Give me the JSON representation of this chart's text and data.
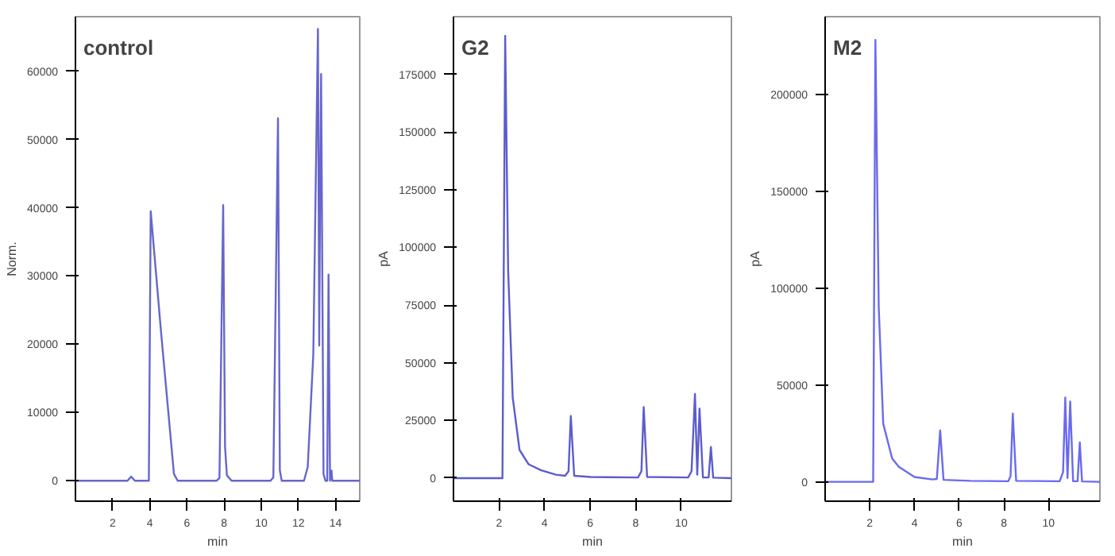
{
  "chart_data": [
    {
      "type": "line",
      "title": "control",
      "ylabel": "Norm.",
      "xlabel": "min",
      "grid": false,
      "marker": "none",
      "x": [
        0,
        2.8,
        3.0,
        3.2,
        3.95,
        4.05,
        4.6,
        5.0,
        5.3,
        5.5,
        7.6,
        7.75,
        7.95,
        8.05,
        8.15,
        8.4,
        10.5,
        10.65,
        10.9,
        11.0,
        11.1,
        12.3,
        12.5,
        12.8,
        13.05,
        13.12,
        13.16,
        13.22,
        13.35,
        13.45,
        13.55,
        13.62,
        13.7,
        13.78,
        13.82,
        13.9,
        15.3
      ],
      "series": [
        {
          "color": "#6666cc",
          "values": [
            0,
            0,
            600,
            0,
            0,
            39500,
            22000,
            10000,
            1000,
            0,
            0,
            400,
            40400,
            5000,
            800,
            0,
            0,
            500,
            53100,
            1500,
            0,
            0,
            2000,
            18500,
            66200,
            19800,
            40000,
            59600,
            1000,
            0,
            0,
            30200,
            0,
            1500,
            0,
            0,
            0
          ]
        }
      ],
      "xlim": [
        0,
        15.3
      ],
      "ylim": [
        -3000,
        68000
      ],
      "xticks": [
        2,
        4,
        6,
        8,
        10,
        12,
        14
      ],
      "yticks": [
        0,
        10000,
        20000,
        30000,
        40000,
        50000,
        60000
      ]
    },
    {
      "type": "line",
      "title": "G2",
      "ylabel": "pA",
      "xlabel": "min",
      "grid": false,
      "marker": "none",
      "x": [
        0,
        2.15,
        2.27,
        2.4,
        2.6,
        2.9,
        3.3,
        3.85,
        4.5,
        4.9,
        5.05,
        5.15,
        5.3,
        6.0,
        8.1,
        8.25,
        8.35,
        8.5,
        10.3,
        10.45,
        10.6,
        10.7,
        10.8,
        10.95,
        11.2,
        11.3,
        11.4,
        12.2
      ],
      "series": [
        {
          "color": "#5c5ccf",
          "values": [
            0,
            0,
            191700,
            90000,
            35000,
            12200,
            6000,
            3400,
            1500,
            1000,
            3000,
            26900,
            1000,
            500,
            300,
            3000,
            30800,
            500,
            300,
            3000,
            36500,
            1500,
            30100,
            300,
            300,
            13500,
            200,
            0
          ]
        }
      ],
      "xlim": [
        0,
        12.2
      ],
      "ylim": [
        -10000,
        200000
      ],
      "xticks": [
        2,
        4,
        6,
        8,
        10
      ],
      "yticks": [
        0,
        25000,
        50000,
        75000,
        100000,
        125000,
        150000,
        175000
      ]
    },
    {
      "type": "line",
      "title": "M2",
      "ylabel": "pA",
      "xlabel": "min",
      "grid": false,
      "marker": "none",
      "x": [
        0,
        2.15,
        2.25,
        2.4,
        2.6,
        3.0,
        3.3,
        4.0,
        4.8,
        5.0,
        5.15,
        5.3,
        6.5,
        8.2,
        8.3,
        8.4,
        8.55,
        10.5,
        10.65,
        10.75,
        10.85,
        10.97,
        11.1,
        11.3,
        11.4,
        11.5,
        12.3
      ],
      "series": [
        {
          "color": "#6a6af0",
          "values": [
            0,
            0,
            228000,
            90000,
            30000,
            12000,
            7700,
            2500,
            1200,
            1500,
            26500,
            1000,
            500,
            300,
            3000,
            35200,
            500,
            300,
            5000,
            43500,
            2000,
            41500,
            300,
            300,
            20300,
            200,
            0
          ]
        }
      ],
      "xlim": [
        0,
        12.3
      ],
      "ylim": [
        -10000,
        240000
      ],
      "xticks": [
        2,
        4,
        6,
        8,
        10
      ],
      "yticks": [
        0,
        50000,
        100000,
        150000,
        200000
      ]
    }
  ]
}
